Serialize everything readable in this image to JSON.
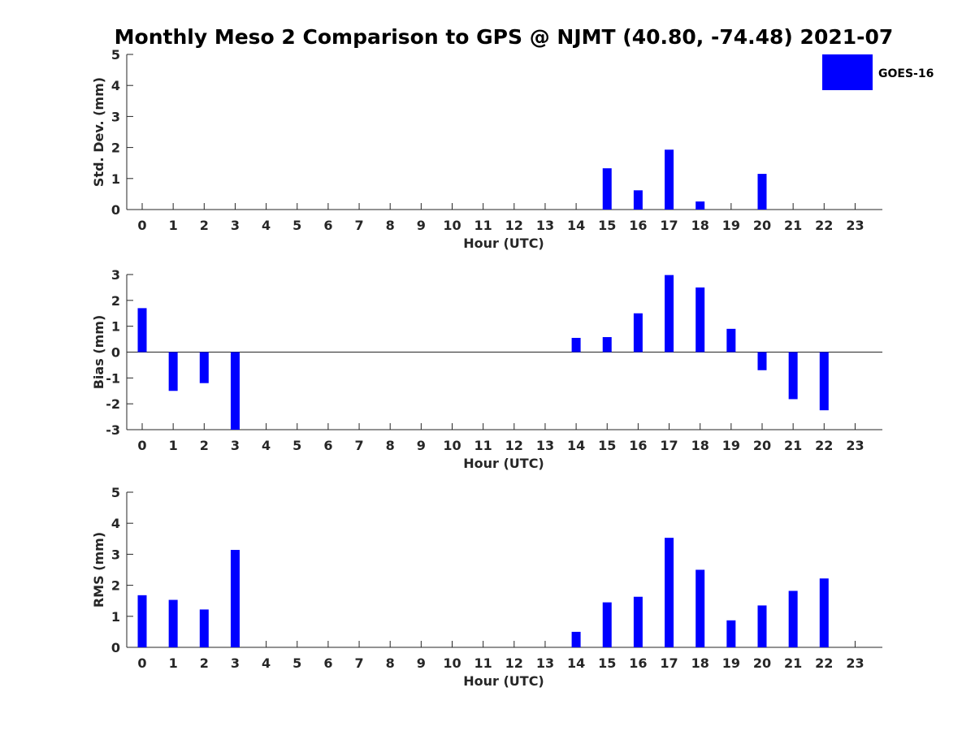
{
  "title": "Monthly Meso 2 Comparison to GPS @ NJMT (40.80, -74.48) 2021-07",
  "legend": {
    "label": "GOES-16",
    "color": "#0000FF",
    "placement": "top-right"
  },
  "chart_data": [
    {
      "type": "bar",
      "xlabel": "Hour (UTC)",
      "ylabel": "Std. Dev. (mm)",
      "ylim": [
        0,
        5
      ],
      "yticks": [
        0,
        1,
        2,
        3,
        4,
        5
      ],
      "categories": [
        "0",
        "1",
        "2",
        "3",
        "4",
        "5",
        "6",
        "7",
        "8",
        "9",
        "10",
        "11",
        "12",
        "13",
        "14",
        "15",
        "16",
        "17",
        "18",
        "19",
        "20",
        "21",
        "22",
        "23"
      ],
      "values": [
        0,
        0,
        0,
        0,
        0,
        0,
        0,
        0,
        0,
        0,
        0,
        0,
        0,
        0,
        0,
        1.33,
        0.62,
        1.93,
        0.26,
        0,
        1.15,
        0,
        0,
        0
      ],
      "series_name": "GOES-16",
      "color": "#0000FF"
    },
    {
      "type": "bar",
      "xlabel": "Hour (UTC)",
      "ylabel": "Bias (mm)",
      "ylim": [
        -3,
        3
      ],
      "yticks": [
        -3,
        -2,
        -1,
        0,
        1,
        2,
        3
      ],
      "categories": [
        "0",
        "1",
        "2",
        "3",
        "4",
        "5",
        "6",
        "7",
        "8",
        "9",
        "10",
        "11",
        "12",
        "13",
        "14",
        "15",
        "16",
        "17",
        "18",
        "19",
        "20",
        "21",
        "22",
        "23"
      ],
      "values": [
        1.7,
        -1.5,
        -1.2,
        -3.0,
        0,
        0,
        0,
        0,
        0,
        0,
        0,
        0,
        0,
        0,
        0.55,
        0.58,
        1.5,
        2.98,
        2.5,
        0.9,
        -0.7,
        -1.82,
        -2.25,
        0
      ],
      "series_name": "GOES-16",
      "color": "#0000FF"
    },
    {
      "type": "bar",
      "xlabel": "Hour (UTC)",
      "ylabel": "RMS (mm)",
      "ylim": [
        0,
        5
      ],
      "yticks": [
        0,
        1,
        2,
        3,
        4,
        5
      ],
      "categories": [
        "0",
        "1",
        "2",
        "3",
        "4",
        "5",
        "6",
        "7",
        "8",
        "9",
        "10",
        "11",
        "12",
        "13",
        "14",
        "15",
        "16",
        "17",
        "18",
        "19",
        "20",
        "21",
        "22",
        "23"
      ],
      "values": [
        1.68,
        1.53,
        1.22,
        3.14,
        0,
        0,
        0,
        0,
        0,
        0,
        0,
        0,
        0,
        0,
        0.5,
        1.45,
        1.63,
        3.53,
        2.5,
        0.87,
        1.35,
        1.82,
        2.22,
        0
      ],
      "series_name": "GOES-16",
      "color": "#0000FF"
    }
  ]
}
